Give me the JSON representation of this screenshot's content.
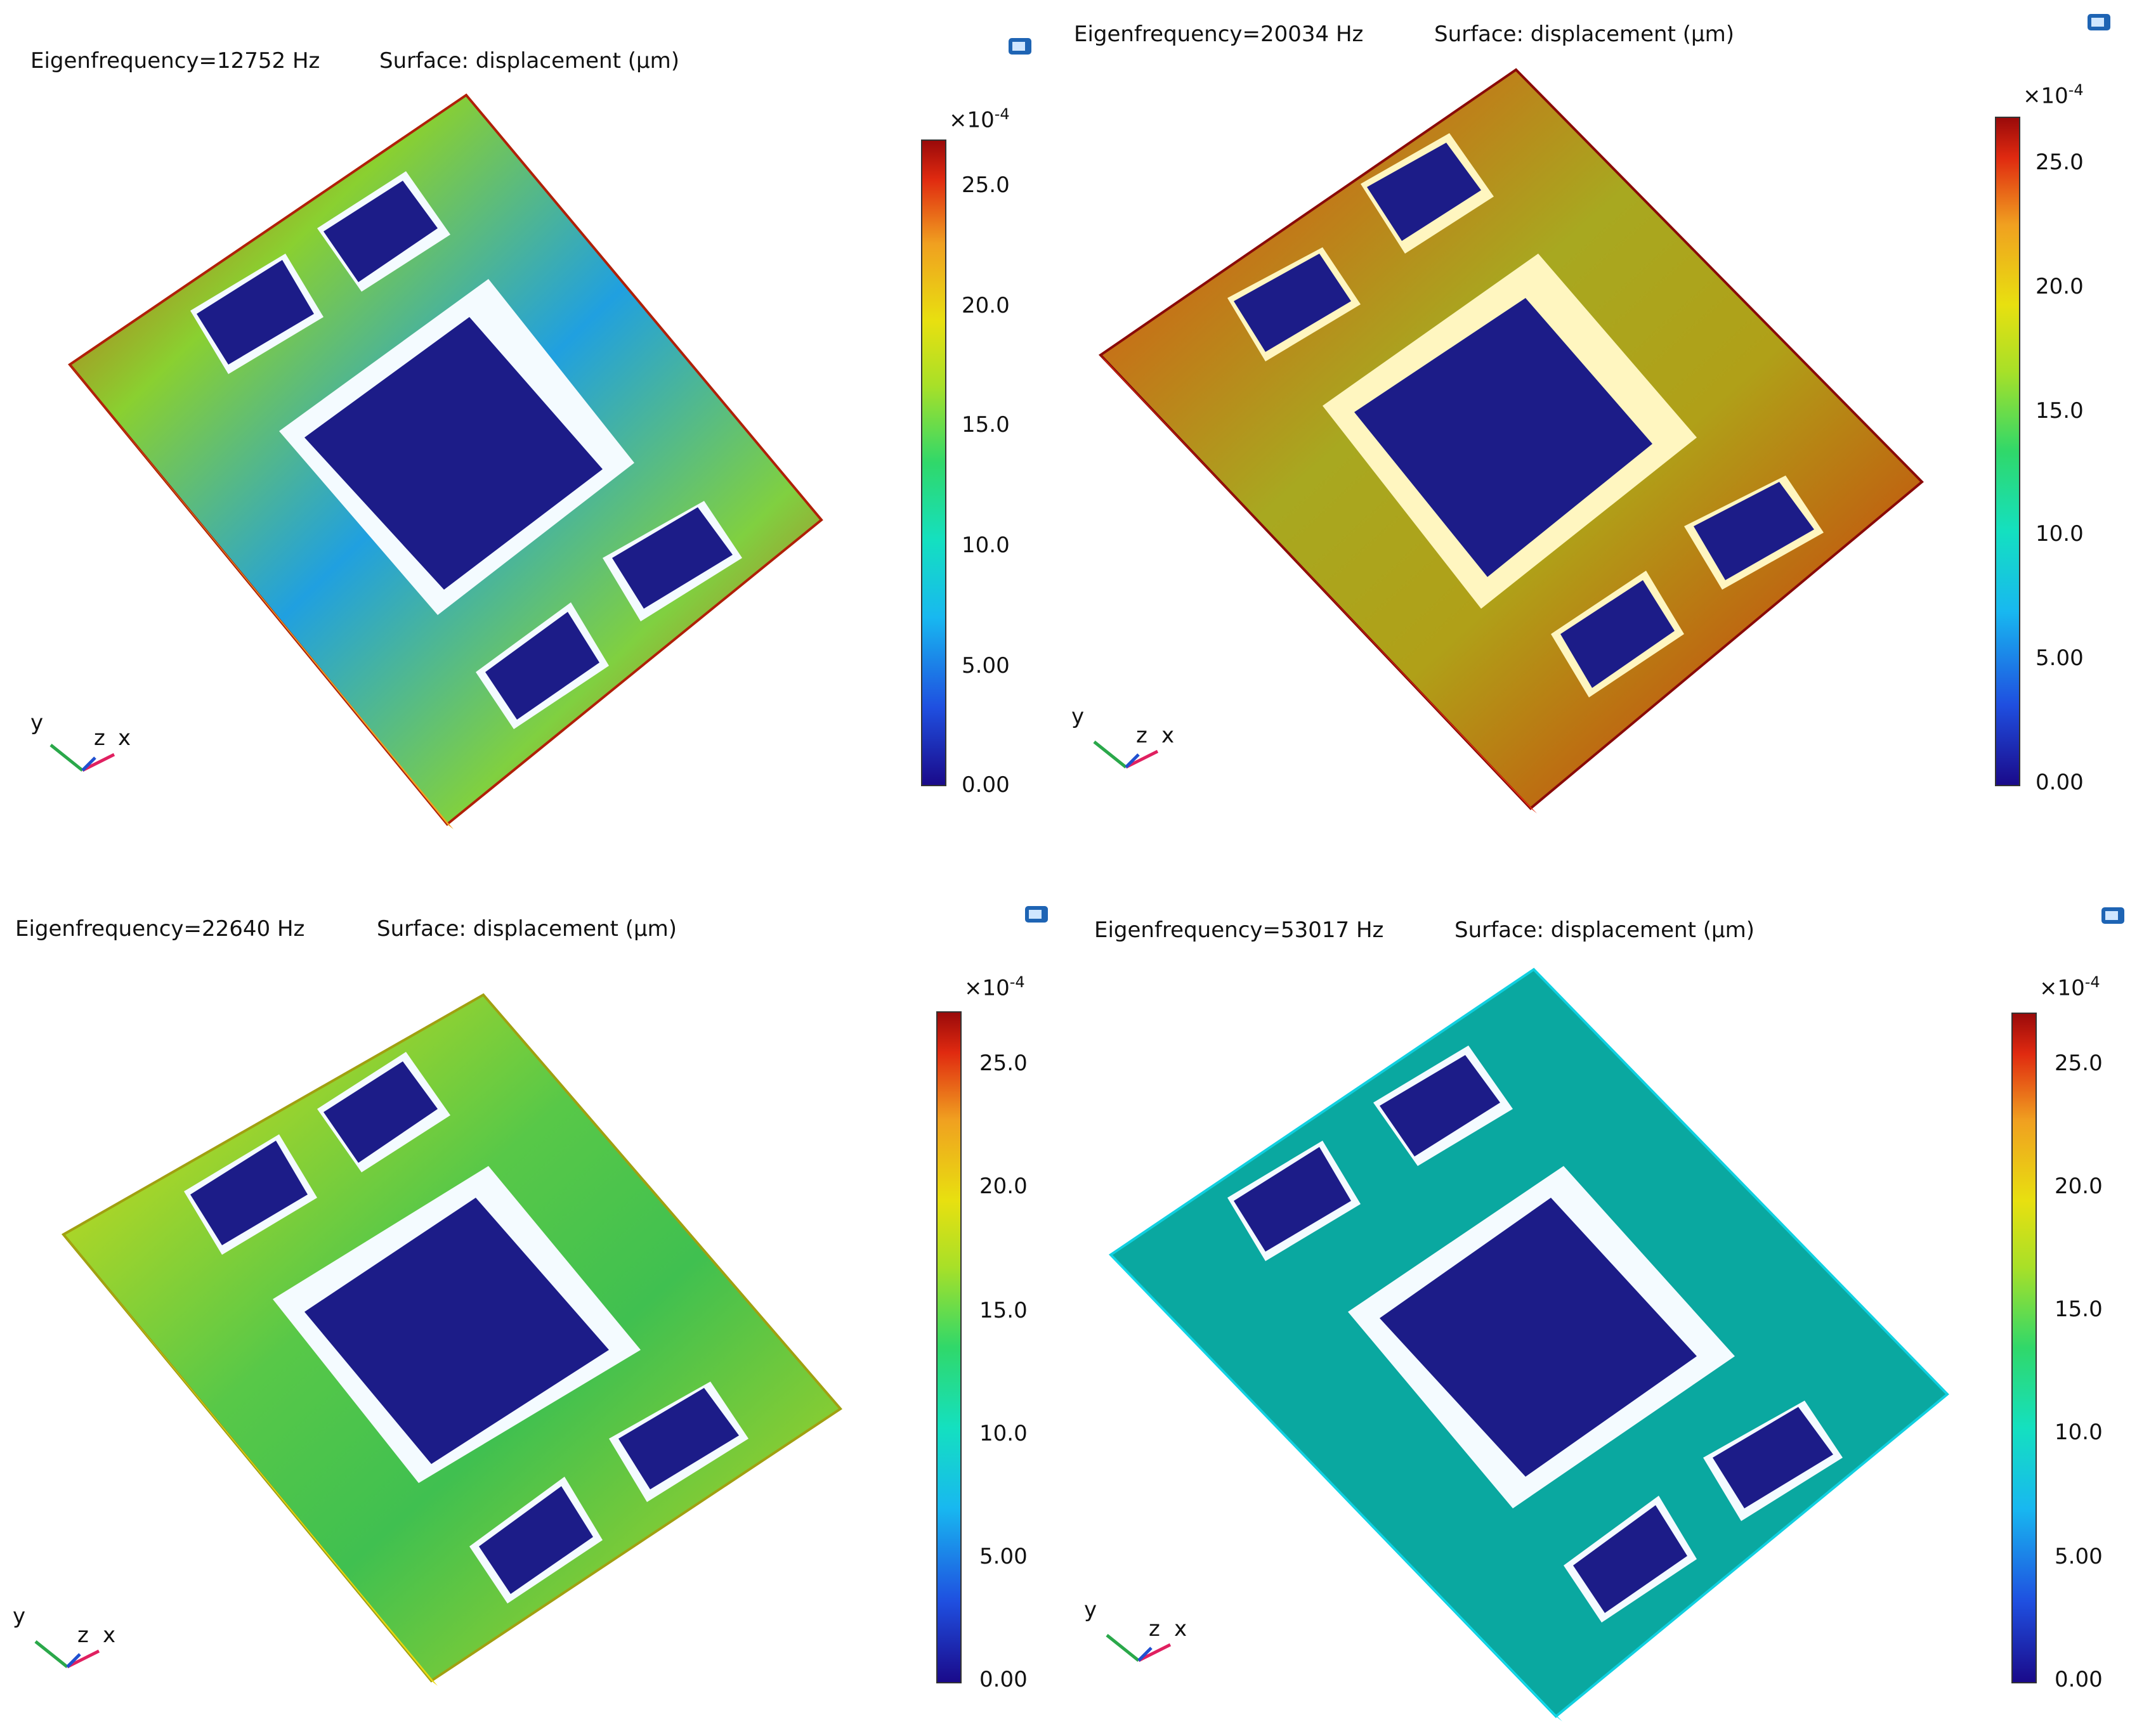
{
  "panels": [
    {
      "eigen": "Eigenfrequency=12752 Hz",
      "surface": "Surface: displacement (µm)",
      "plate_color": "#78c838"
    },
    {
      "eigen": "Eigenfrequency=20034 Hz",
      "surface": "Surface: displacement (µm)",
      "plate_color": "#a8b020"
    },
    {
      "eigen": "Eigenfrequency=22640 Hz",
      "surface": "Surface: displacement (µm)",
      "plate_color": "#7cc040"
    },
    {
      "eigen": "Eigenfrequency=53017 Hz",
      "surface": "Surface: displacement (µm)",
      "plate_color": "#0aa8a0"
    }
  ],
  "colorbar": {
    "scale_base": "×10",
    "scale_exp": "-4",
    "ticks": [
      "25.0",
      "20.0",
      "15.0",
      "10.0",
      "5.00",
      "0.00"
    ]
  },
  "axes": {
    "y": "y",
    "z": "z",
    "x": "x"
  },
  "icons": {
    "camera": "camera-icon"
  },
  "colors": {
    "dark_blue": "#1c1c88",
    "red": "#c81e10"
  }
}
